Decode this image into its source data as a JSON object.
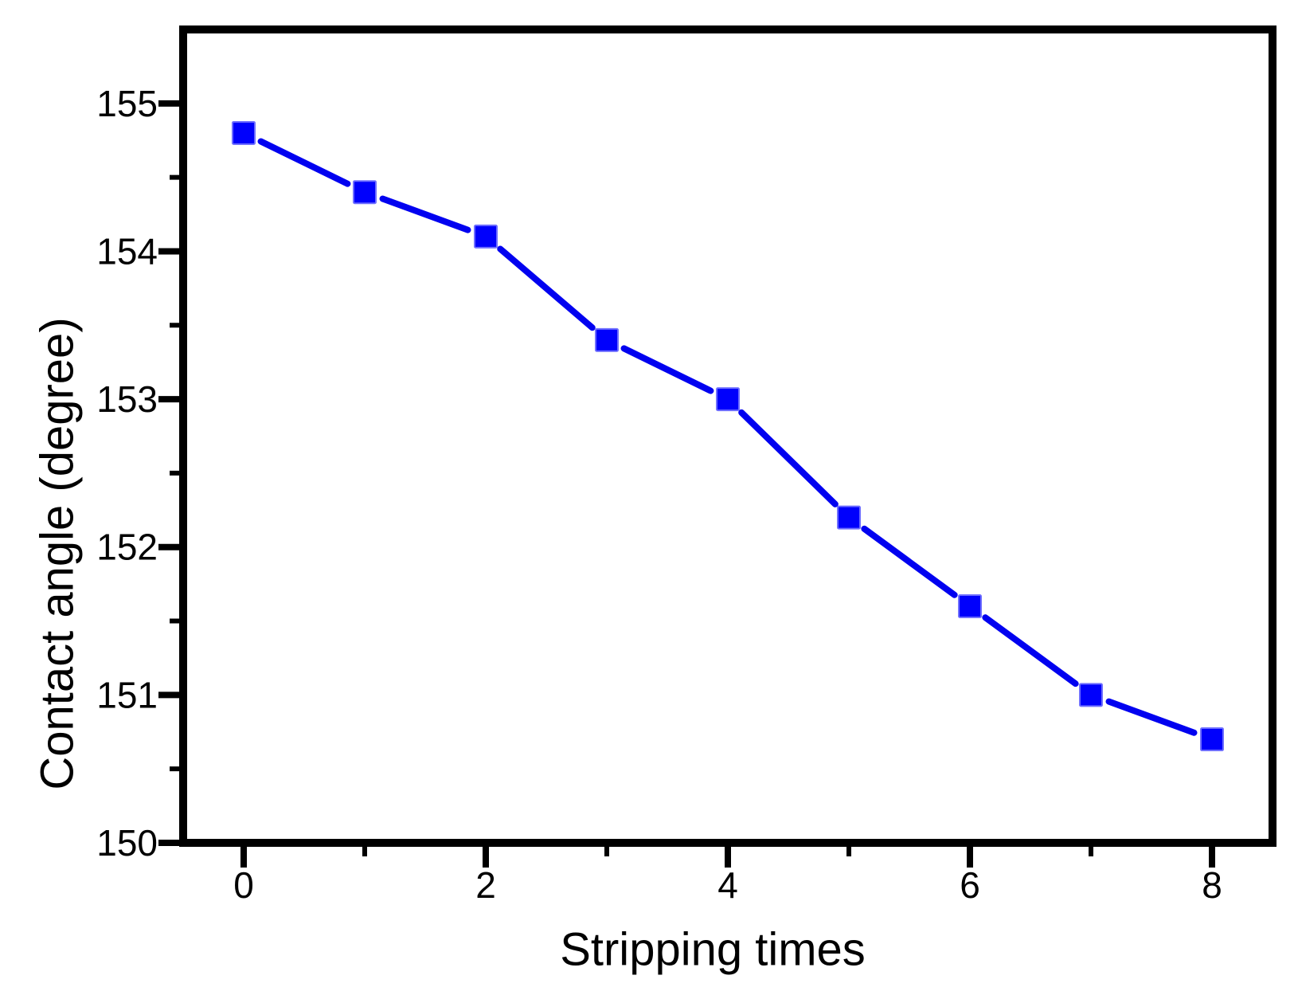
{
  "chart_data": {
    "type": "line",
    "title": "",
    "xlabel": "Stripping times",
    "ylabel": "Contact angle (degree)",
    "x": [
      0,
      1,
      2,
      3,
      4,
      5,
      6,
      7,
      8
    ],
    "series": [
      {
        "name": "Contact angle",
        "values": [
          154.8,
          154.4,
          154.1,
          153.4,
          153.0,
          152.2,
          151.6,
          151.0,
          150.7
        ]
      }
    ],
    "xlim": [
      -0.5,
      8.5
    ],
    "ylim": [
      150,
      155.5
    ],
    "x_major_ticks": [
      0,
      2,
      4,
      6,
      8
    ],
    "x_major_tick_labels": [
      "0",
      "2",
      "4",
      "6",
      "8"
    ],
    "x_minor_ticks": [
      1,
      3,
      5,
      7
    ],
    "y_major_ticks": [
      150,
      151,
      152,
      153,
      154,
      155
    ],
    "y_major_tick_labels": [
      "150",
      "151",
      "152",
      "153",
      "154",
      "155"
    ],
    "y_minor_ticks": [
      150.5,
      151.5,
      152.5,
      153.5,
      154.5
    ],
    "grid": false,
    "legend_position": "none",
    "line_color": "#0101F0",
    "marker_color": "#0000FC",
    "marker_edge_color": "#6E6EFF",
    "marker_shape": "square",
    "axis_color": "#000000",
    "background_color": "#FFFFFF"
  }
}
